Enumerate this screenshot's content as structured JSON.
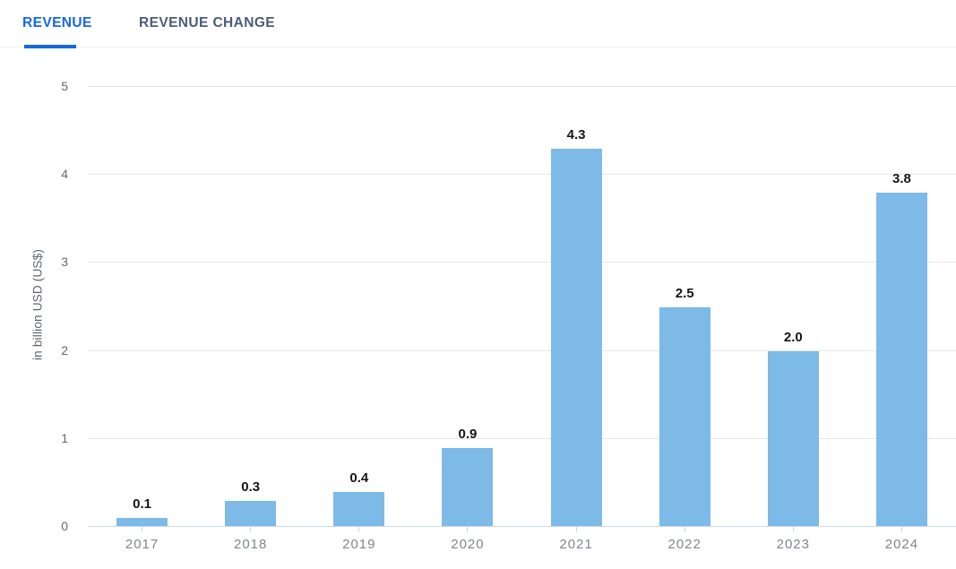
{
  "tabs": {
    "revenue": "REVENUE",
    "revenue_change": "REVENUE CHANGE"
  },
  "colors": {
    "bar": "#7dbae8",
    "tab_active": "#1668e3",
    "tab_inactive": "#4a5d78",
    "gridline": "#e7e7e7",
    "axis_line": "#ccd6eb",
    "value_label": "#151515",
    "x_label": "#80868c",
    "y_label": "#66696e"
  },
  "chart_data": {
    "type": "bar",
    "title": "",
    "categories": [
      "2017",
      "2018",
      "2019",
      "2020",
      "2021",
      "2022",
      "2023",
      "2024"
    ],
    "values": [
      0.1,
      0.3,
      0.4,
      0.9,
      4.3,
      2.5,
      2.0,
      3.8
    ],
    "value_labels": [
      "0.1",
      "0.3",
      "0.4",
      "0.9",
      "4.3",
      "2.5",
      "2.0",
      "3.8"
    ],
    "xlabel": "",
    "ylabel": "in billion USD (US$)",
    "ylim": [
      0,
      5
    ],
    "yticks": [
      0,
      1,
      2,
      3,
      4,
      5
    ],
    "grid": true,
    "legend": "none"
  }
}
